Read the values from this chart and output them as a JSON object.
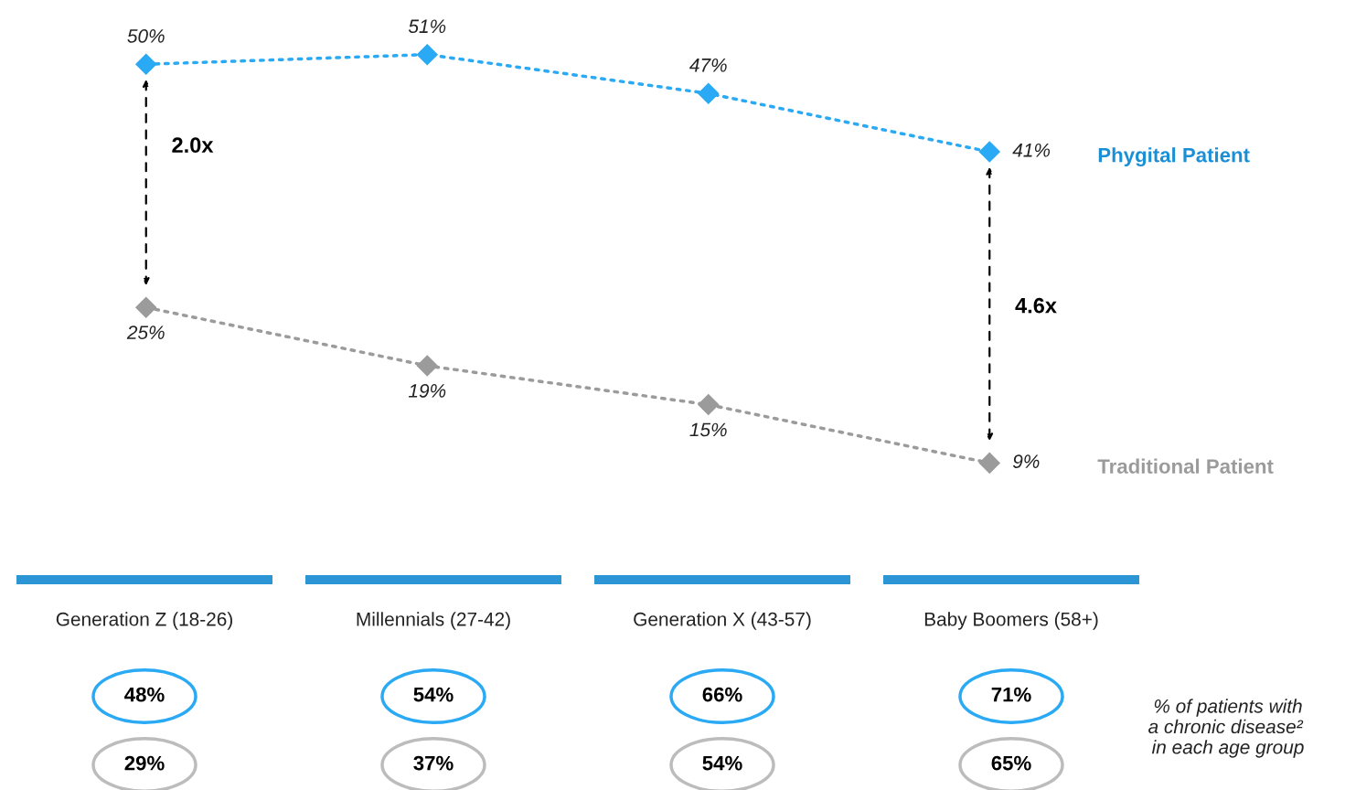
{
  "chart_data": [
    {
      "type": "line",
      "categories": [
        null,
        null,
        null,
        null
      ],
      "marker": "diamond",
      "line_style": "dotted",
      "legend": false,
      "grid": false,
      "series": [
        {
          "name": "Phygital Patient",
          "color": "#2aa9f4",
          "values": [
            50,
            51,
            47,
            41
          ],
          "value_labels": [
            "50%",
            "51%",
            "47%",
            "41%"
          ]
        },
        {
          "name": "Traditional Patient",
          "color": "#9b9b9b",
          "values": [
            25,
            19,
            15,
            9
          ],
          "value_labels": [
            "25%",
            "19%",
            "15%",
            "9%"
          ]
        }
      ],
      "annotations": [
        "2.0x",
        "4.6x"
      ]
    },
    {
      "type": "other",
      "categories": [
        "Generation Z (18-26)",
        "Millennials (27-42)",
        "Generation X (43-57)",
        "Baby Boomers (58+)"
      ],
      "color": "#2b95d6",
      "series": [
        {
          "color": "#2aa9f4",
          "values": [
            48,
            54,
            66,
            71
          ],
          "value_labels": [
            "48%",
            "54%",
            "66%",
            "71%"
          ]
        },
        {
          "color": "#bcbcbc",
          "values": [
            29,
            37,
            54,
            65
          ],
          "value_labels": [
            "29%",
            "37%",
            "54%",
            "65%"
          ]
        }
      ],
      "annotations": [
        "% of patients with\na chronic disease² \nin each age group"
      ]
    }
  ]
}
